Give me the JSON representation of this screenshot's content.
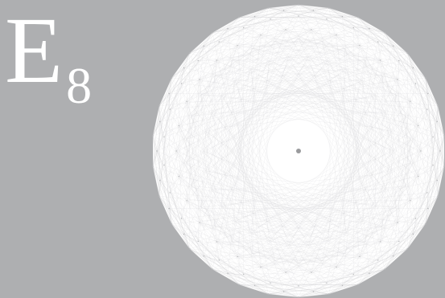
{
  "diagram": {
    "title": {
      "base": "E",
      "subscript": "8"
    },
    "colors": {
      "background": "#aeafb1",
      "edge": "#ffffff",
      "center_dot": "#9a9b9d"
    }
  }
}
